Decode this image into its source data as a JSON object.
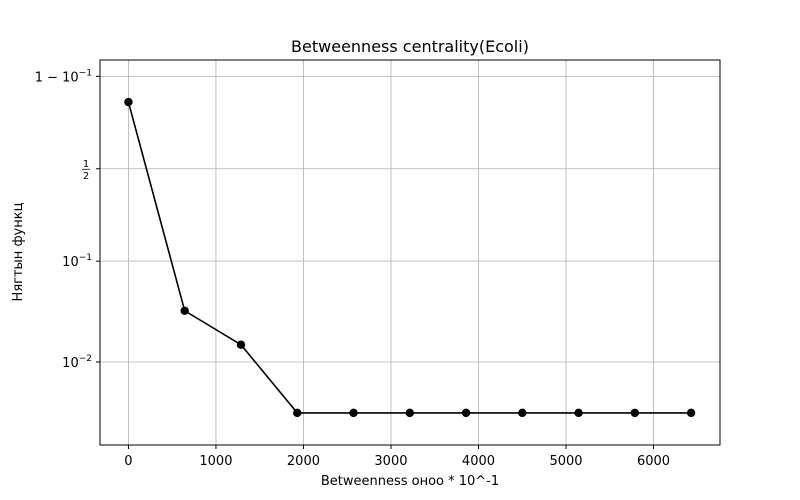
{
  "chart_data": {
    "type": "line",
    "title": "Betweenness centrality(Ecoli)",
    "xlabel": "Betweenness оноо * 10^-1",
    "ylabel": "Нягтын функц",
    "xlim": [
      -325,
      6760
    ],
    "x_ticks": [
      {
        "value": 0,
        "label": "0"
      },
      {
        "value": 1000,
        "label": "1000"
      },
      {
        "value": 2000,
        "label": "2000"
      },
      {
        "value": 3000,
        "label": "3000"
      },
      {
        "value": 4000,
        "label": "4000"
      },
      {
        "value": 5000,
        "label": "5000"
      },
      {
        "value": 6000,
        "label": "6000"
      }
    ],
    "y_scale": "logit",
    "y_ticks": [
      {
        "value": 0.9,
        "kind": "one-minus-pow",
        "base": "1 − 10",
        "exp": "−1"
      },
      {
        "value": 0.5,
        "kind": "fraction",
        "num": "1",
        "den": "2"
      },
      {
        "value": 0.1,
        "kind": "pow",
        "base": "10",
        "exp": "−1"
      },
      {
        "value": 0.01,
        "kind": "pow",
        "base": "10",
        "exp": "−2"
      }
    ],
    "grid": true,
    "legend": "none",
    "series": [
      {
        "color": "#000000",
        "marker": "circle",
        "x": [
          0,
          643,
          1286,
          1929,
          2572,
          3215,
          3858,
          4501,
          5144,
          5787,
          6430
        ],
        "y": [
          0.83,
          0.033,
          0.015,
          0.003,
          0.003,
          0.003,
          0.003,
          0.003,
          0.003,
          0.003,
          0.003
        ]
      }
    ]
  }
}
